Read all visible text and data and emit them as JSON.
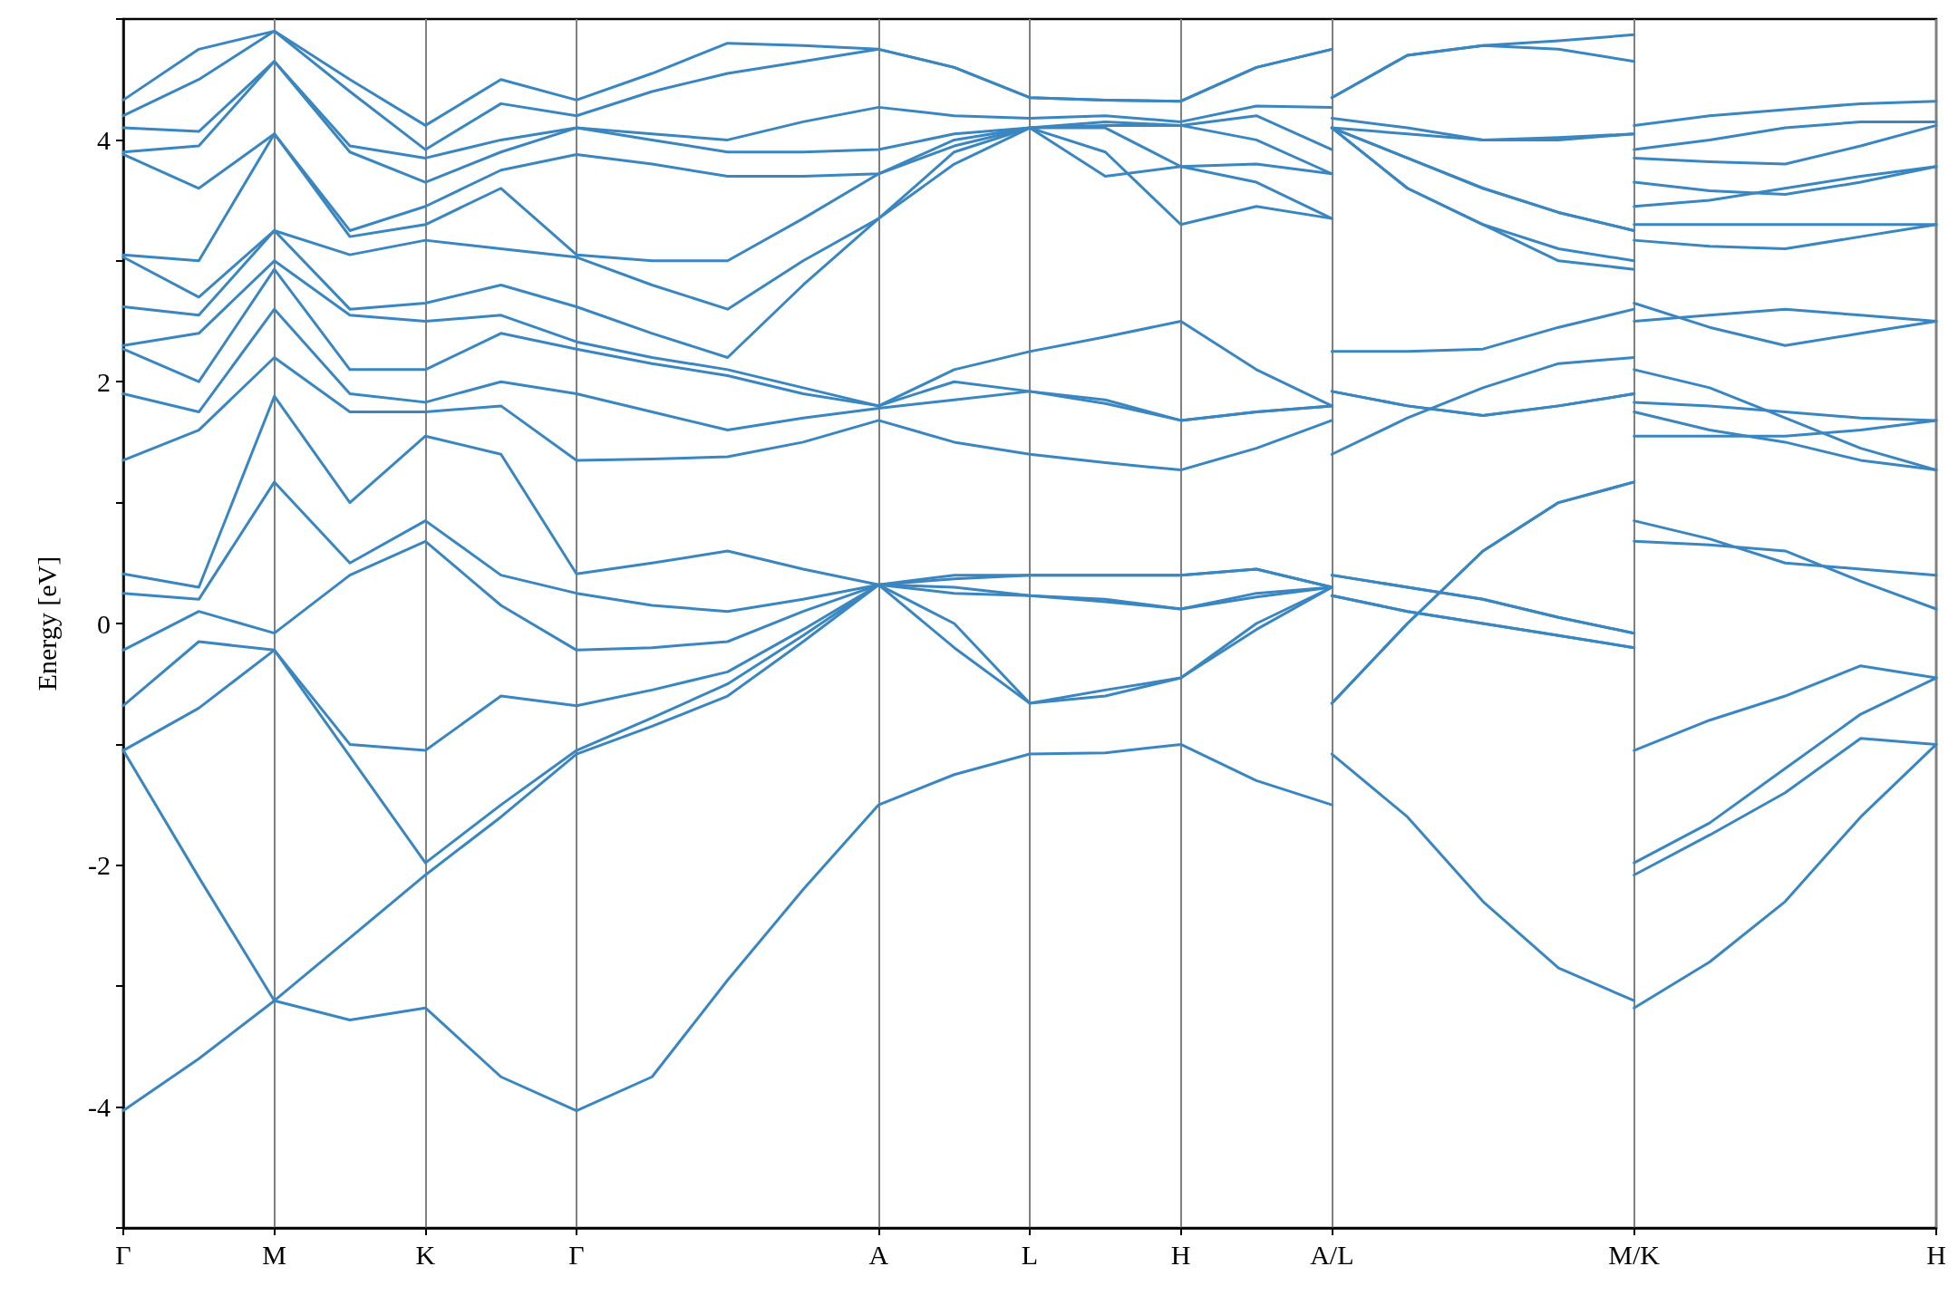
{
  "chart_data": {
    "type": "line",
    "ylabel": "Energy [eV]",
    "color": "#3a86c0",
    "grid": "x",
    "marker": "none",
    "line_style": "solid",
    "categories": [
      "Γ",
      null,
      "M",
      null,
      "K",
      null,
      "Γ",
      null,
      null,
      null,
      "A",
      null,
      "L",
      null,
      "H",
      null,
      "A/L",
      null,
      null,
      null,
      "M/K",
      null,
      null,
      null,
      "H"
    ],
    "ylim": [
      -5,
      5
    ],
    "yticks": [
      {
        "value": -5,
        "label": null
      },
      -4,
      {
        "value": -3,
        "label": null
      },
      -2,
      {
        "value": -1,
        "label": null
      },
      0,
      {
        "value": 1,
        "label": null
      },
      2,
      {
        "value": 3,
        "label": null
      },
      4,
      {
        "value": 5,
        "label": null
      }
    ],
    "series": [
      {
        "values": [
          -4.03,
          -3.6,
          -3.12,
          -3.28,
          -3.18,
          -3.75,
          -4.03,
          -3.75,
          -2.95,
          -2.2,
          -1.5,
          -1.25,
          -1.08,
          -1.07,
          -1.0,
          -1.3,
          -1.5,
          null,
          null,
          null,
          null,
          null,
          null,
          null,
          null
        ]
      },
      {
        "values": [
          null,
          null,
          null,
          null,
          null,
          null,
          null,
          null,
          null,
          null,
          null,
          null,
          null,
          null,
          null,
          null,
          -1.08,
          -1.6,
          -2.3,
          -2.85,
          -3.12,
          null,
          null,
          null,
          null
        ]
      },
      {
        "values": [
          null,
          null,
          null,
          null,
          null,
          null,
          null,
          null,
          null,
          null,
          null,
          null,
          null,
          null,
          null,
          null,
          null,
          null,
          null,
          null,
          -3.18,
          -2.8,
          -2.3,
          -1.6,
          -1.0
        ]
      },
      {
        "values": [
          -1.05,
          -2.1,
          -3.12,
          -2.6,
          -2.08,
          -1.6,
          -1.08,
          -0.85,
          -0.6,
          -0.15,
          0.32,
          -0.2,
          -0.66,
          -0.6,
          -0.45,
          -0.05,
          0.3,
          null,
          null,
          null,
          null,
          null,
          null,
          null,
          null
        ]
      },
      {
        "values": [
          null,
          null,
          null,
          null,
          null,
          null,
          null,
          null,
          null,
          null,
          null,
          null,
          null,
          null,
          null,
          null,
          -0.66,
          0.0,
          0.6,
          1.0,
          1.17,
          null,
          null,
          null,
          null
        ]
      },
      {
        "values": [
          null,
          null,
          null,
          null,
          null,
          null,
          null,
          null,
          null,
          null,
          null,
          null,
          null,
          null,
          null,
          null,
          null,
          null,
          null,
          null,
          -2.08,
          -1.75,
          -1.4,
          -0.95,
          -1.0
        ]
      },
      {
        "values": [
          -1.05,
          -0.7,
          -0.22,
          -1.1,
          -1.98,
          -1.5,
          -1.05,
          -0.78,
          -0.5,
          -0.1,
          0.32,
          0.0,
          -0.66,
          -0.55,
          -0.45,
          0.0,
          0.3,
          null,
          null,
          null,
          null,
          null,
          null,
          null,
          null
        ]
      },
      {
        "values": [
          null,
          null,
          null,
          null,
          null,
          null,
          null,
          null,
          null,
          null,
          null,
          null,
          null,
          null,
          null,
          null,
          -0.66,
          0.0,
          0.6,
          1.0,
          1.17,
          null,
          null,
          null,
          null
        ]
      },
      {
        "values": [
          null,
          null,
          null,
          null,
          null,
          null,
          null,
          null,
          null,
          null,
          null,
          null,
          null,
          null,
          null,
          null,
          null,
          null,
          null,
          null,
          -1.98,
          -1.65,
          -1.2,
          -0.75,
          -0.45
        ]
      },
      {
        "values": [
          -0.68,
          -0.15,
          -0.22,
          -1.0,
          -1.05,
          -0.6,
          -0.68,
          -0.55,
          -0.4,
          -0.05,
          0.32,
          0.25,
          0.23,
          0.2,
          0.12,
          0.22,
          0.3,
          null,
          null,
          null,
          null,
          null,
          null,
          null,
          null
        ]
      },
      {
        "values": [
          null,
          null,
          null,
          null,
          null,
          null,
          null,
          null,
          null,
          null,
          null,
          null,
          null,
          null,
          null,
          null,
          0.23,
          0.1,
          0.0,
          -0.1,
          -0.2,
          null,
          null,
          null,
          null
        ]
      },
      {
        "values": [
          null,
          null,
          null,
          null,
          null,
          null,
          null,
          null,
          null,
          null,
          null,
          null,
          null,
          null,
          null,
          null,
          null,
          null,
          null,
          null,
          -1.05,
          -0.8,
          -0.6,
          -0.35,
          -0.45
        ]
      },
      {
        "values": [
          -0.22,
          0.1,
          -0.08,
          0.4,
          0.68,
          0.15,
          -0.22,
          -0.2,
          -0.15,
          0.1,
          0.32,
          0.3,
          0.23,
          0.18,
          0.12,
          0.25,
          0.3,
          null,
          null,
          null,
          null,
          null,
          null,
          null,
          null
        ]
      },
      {
        "values": [
          null,
          null,
          null,
          null,
          null,
          null,
          null,
          null,
          null,
          null,
          null,
          null,
          null,
          null,
          null,
          null,
          0.23,
          0.1,
          0.0,
          -0.1,
          -0.2,
          null,
          null,
          null,
          null
        ]
      },
      {
        "values": [
          null,
          null,
          null,
          null,
          null,
          null,
          null,
          null,
          null,
          null,
          null,
          null,
          null,
          null,
          null,
          null,
          null,
          null,
          null,
          null,
          0.68,
          0.65,
          0.6,
          0.35,
          0.12
        ]
      },
      {
        "values": [
          0.25,
          0.2,
          1.17,
          0.5,
          0.85,
          0.4,
          0.25,
          0.15,
          0.1,
          0.2,
          0.32,
          0.37,
          0.4,
          0.4,
          0.4,
          0.45,
          0.3,
          null,
          null,
          null,
          null,
          null,
          null,
          null,
          null
        ]
      },
      {
        "values": [
          null,
          null,
          null,
          null,
          null,
          null,
          null,
          null,
          null,
          null,
          null,
          null,
          null,
          null,
          null,
          null,
          0.4,
          0.3,
          0.2,
          0.05,
          -0.08,
          null,
          null,
          null,
          null
        ]
      },
      {
        "values": [
          null,
          null,
          null,
          null,
          null,
          null,
          null,
          null,
          null,
          null,
          null,
          null,
          null,
          null,
          null,
          null,
          null,
          null,
          null,
          null,
          0.85,
          0.7,
          0.5,
          0.45,
          0.4
        ]
      },
      {
        "values": [
          0.41,
          0.3,
          1.88,
          1.0,
          1.55,
          1.4,
          0.41,
          0.5,
          0.6,
          0.45,
          0.32,
          0.4,
          0.4,
          0.4,
          0.4,
          0.45,
          0.3,
          null,
          null,
          null,
          null,
          null,
          null,
          null,
          null
        ]
      },
      {
        "values": [
          null,
          null,
          null,
          null,
          null,
          null,
          null,
          null,
          null,
          null,
          null,
          null,
          null,
          null,
          null,
          null,
          0.4,
          0.3,
          0.2,
          0.05,
          -0.08,
          null,
          null,
          null,
          null
        ]
      },
      {
        "values": [
          null,
          null,
          null,
          null,
          null,
          null,
          null,
          null,
          null,
          null,
          null,
          null,
          null,
          null,
          null,
          null,
          null,
          null,
          null,
          null,
          1.55,
          1.55,
          1.55,
          1.6,
          1.68
        ]
      },
      {
        "values": [
          1.35,
          1.6,
          2.2,
          1.75,
          1.75,
          1.8,
          1.35,
          1.36,
          1.38,
          1.5,
          1.68,
          1.5,
          1.4,
          1.33,
          1.27,
          1.45,
          1.68,
          null,
          null,
          null,
          null,
          null,
          null,
          null,
          null
        ]
      },
      {
        "values": [
          null,
          null,
          null,
          null,
          null,
          null,
          null,
          null,
          null,
          null,
          null,
          null,
          null,
          null,
          null,
          null,
          1.4,
          1.7,
          1.95,
          2.15,
          2.2,
          null,
          null,
          null,
          null
        ]
      },
      {
        "values": [
          null,
          null,
          null,
          null,
          null,
          null,
          null,
          null,
          null,
          null,
          null,
          null,
          null,
          null,
          null,
          null,
          null,
          null,
          null,
          null,
          1.75,
          1.6,
          1.5,
          1.35,
          1.27
        ]
      },
      {
        "values": [
          1.9,
          1.75,
          2.6,
          1.9,
          1.83,
          2.0,
          1.9,
          1.75,
          1.6,
          1.7,
          1.78,
          1.85,
          1.92,
          1.82,
          1.68,
          1.75,
          1.8,
          null,
          null,
          null,
          null,
          null,
          null,
          null,
          null
        ]
      },
      {
        "values": [
          null,
          null,
          null,
          null,
          null,
          null,
          null,
          null,
          null,
          null,
          null,
          null,
          null,
          null,
          null,
          null,
          1.92,
          1.8,
          1.72,
          1.8,
          1.9,
          null,
          null,
          null,
          null
        ]
      },
      {
        "values": [
          null,
          null,
          null,
          null,
          null,
          null,
          null,
          null,
          null,
          null,
          null,
          null,
          null,
          null,
          null,
          null,
          null,
          null,
          null,
          null,
          1.83,
          1.8,
          1.75,
          1.7,
          1.68
        ]
      },
      {
        "values": [
          2.27,
          2.0,
          2.93,
          2.1,
          2.1,
          2.4,
          2.27,
          2.15,
          2.05,
          1.9,
          1.8,
          2.0,
          1.92,
          1.85,
          1.68,
          1.75,
          1.8,
          null,
          null,
          null,
          null,
          null,
          null,
          null,
          null
        ]
      },
      {
        "values": [
          null,
          null,
          null,
          null,
          null,
          null,
          null,
          null,
          null,
          null,
          null,
          null,
          null,
          null,
          null,
          null,
          1.92,
          1.8,
          1.72,
          1.8,
          1.9,
          null,
          null,
          null,
          null
        ]
      },
      {
        "values": [
          null,
          null,
          null,
          null,
          null,
          null,
          null,
          null,
          null,
          null,
          null,
          null,
          null,
          null,
          null,
          null,
          null,
          null,
          null,
          null,
          2.1,
          1.95,
          1.7,
          1.45,
          1.27
        ]
      },
      {
        "values": [
          2.3,
          2.4,
          3.0,
          2.55,
          2.5,
          2.55,
          2.33,
          2.2,
          2.1,
          1.95,
          1.8,
          2.1,
          2.25,
          2.37,
          2.5,
          2.1,
          1.8,
          null,
          null,
          null,
          null,
          null,
          null,
          null,
          null
        ]
      },
      {
        "values": [
          null,
          null,
          null,
          null,
          null,
          null,
          null,
          null,
          null,
          null,
          null,
          null,
          null,
          null,
          null,
          null,
          2.25,
          2.25,
          2.27,
          2.45,
          2.6,
          null,
          null,
          null,
          null
        ]
      },
      {
        "values": [
          null,
          null,
          null,
          null,
          null,
          null,
          null,
          null,
          null,
          null,
          null,
          null,
          null,
          null,
          null,
          null,
          null,
          null,
          null,
          null,
          2.5,
          2.55,
          2.6,
          2.55,
          2.5
        ]
      },
      {
        "values": [
          2.62,
          2.55,
          3.25,
          2.6,
          2.65,
          2.8,
          2.62,
          2.4,
          2.2,
          2.8,
          3.35,
          3.8,
          4.1,
          3.9,
          3.3,
          3.45,
          3.35,
          null,
          null,
          null,
          null,
          null,
          null,
          null,
          null
        ]
      },
      {
        "values": [
          null,
          null,
          null,
          null,
          null,
          null,
          null,
          null,
          null,
          null,
          null,
          null,
          null,
          null,
          null,
          null,
          4.1,
          3.85,
          3.6,
          3.4,
          3.25,
          null,
          null,
          null,
          null
        ]
      },
      {
        "values": [
          null,
          null,
          null,
          null,
          null,
          null,
          null,
          null,
          null,
          null,
          null,
          null,
          null,
          null,
          null,
          null,
          null,
          null,
          null,
          null,
          2.65,
          2.45,
          2.3,
          2.4,
          2.5
        ]
      },
      {
        "values": [
          3.03,
          2.7,
          3.25,
          3.05,
          3.17,
          3.1,
          3.03,
          2.8,
          2.6,
          3.0,
          3.35,
          3.9,
          4.1,
          3.7,
          3.78,
          3.65,
          3.35,
          null,
          null,
          null,
          null,
          null,
          null,
          null,
          null
        ]
      },
      {
        "values": [
          null,
          null,
          null,
          null,
          null,
          null,
          null,
          null,
          null,
          null,
          null,
          null,
          null,
          null,
          null,
          null,
          4.1,
          3.85,
          3.6,
          3.4,
          3.25,
          null,
          null,
          null,
          null
        ]
      },
      {
        "values": [
          null,
          null,
          null,
          null,
          null,
          null,
          null,
          null,
          null,
          null,
          null,
          null,
          null,
          null,
          null,
          null,
          null,
          null,
          null,
          null,
          3.17,
          3.12,
          3.1,
          3.2,
          3.3
        ]
      },
      {
        "values": [
          3.05,
          3.0,
          4.05,
          3.2,
          3.3,
          3.6,
          3.05,
          3.0,
          3.0,
          3.35,
          3.72,
          3.95,
          4.1,
          4.1,
          3.78,
          3.8,
          3.72,
          null,
          null,
          null,
          null,
          null,
          null,
          null,
          null
        ]
      },
      {
        "values": [
          null,
          null,
          null,
          null,
          null,
          null,
          null,
          null,
          null,
          null,
          null,
          null,
          null,
          null,
          null,
          null,
          4.1,
          3.6,
          3.3,
          3.1,
          3.0,
          null,
          null,
          null,
          null
        ]
      },
      {
        "values": [
          null,
          null,
          null,
          null,
          null,
          null,
          null,
          null,
          null,
          null,
          null,
          null,
          null,
          null,
          null,
          null,
          null,
          null,
          null,
          null,
          3.3,
          3.3,
          3.3,
          3.3,
          3.3
        ]
      },
      {
        "values": [
          3.88,
          3.6,
          4.05,
          3.25,
          3.45,
          3.75,
          3.88,
          3.8,
          3.7,
          3.7,
          3.72,
          4.0,
          4.1,
          4.12,
          4.12,
          4.0,
          3.72,
          null,
          null,
          null,
          null,
          null,
          null,
          null,
          null
        ]
      },
      {
        "values": [
          null,
          null,
          null,
          null,
          null,
          null,
          null,
          null,
          null,
          null,
          null,
          null,
          null,
          null,
          null,
          null,
          4.1,
          3.6,
          3.3,
          3.0,
          2.93,
          null,
          null,
          null,
          null
        ]
      },
      {
        "values": [
          null,
          null,
          null,
          null,
          null,
          null,
          null,
          null,
          null,
          null,
          null,
          null,
          null,
          null,
          null,
          null,
          null,
          null,
          null,
          null,
          3.45,
          3.5,
          3.6,
          3.7,
          3.78
        ]
      },
      {
        "values": [
          3.9,
          3.95,
          4.65,
          3.9,
          3.65,
          3.9,
          4.1,
          4.0,
          3.9,
          3.9,
          3.92,
          4.05,
          4.1,
          4.15,
          4.12,
          4.2,
          3.92,
          null,
          null,
          null,
          null,
          null,
          null,
          null,
          null
        ]
      },
      {
        "values": [
          null,
          null,
          null,
          null,
          null,
          null,
          null,
          null,
          null,
          null,
          null,
          null,
          null,
          null,
          null,
          null,
          4.1,
          4.05,
          4.0,
          4.0,
          4.05,
          null,
          null,
          null,
          null
        ]
      },
      {
        "values": [
          null,
          null,
          null,
          null,
          null,
          null,
          null,
          null,
          null,
          null,
          null,
          null,
          null,
          null,
          null,
          null,
          null,
          null,
          null,
          null,
          3.65,
          3.58,
          3.55,
          3.65,
          3.78
        ]
      },
      {
        "values": [
          4.1,
          4.07,
          4.65,
          3.95,
          3.85,
          4.0,
          4.1,
          4.05,
          4.0,
          4.15,
          4.27,
          4.2,
          4.18,
          4.2,
          4.15,
          4.28,
          4.27,
          null,
          null,
          null,
          null,
          null,
          null,
          null,
          null
        ]
      },
      {
        "values": [
          null,
          null,
          null,
          null,
          null,
          null,
          null,
          null,
          null,
          null,
          null,
          null,
          null,
          null,
          null,
          null,
          4.18,
          4.1,
          4.0,
          4.02,
          4.05,
          null,
          null,
          null,
          null
        ]
      },
      {
        "values": [
          null,
          null,
          null,
          null,
          null,
          null,
          null,
          null,
          null,
          null,
          null,
          null,
          null,
          null,
          null,
          null,
          null,
          null,
          null,
          null,
          3.85,
          3.82,
          3.8,
          3.95,
          4.12
        ]
      },
      {
        "values": [
          4.2,
          4.5,
          4.9,
          4.4,
          3.92,
          4.3,
          4.2,
          4.4,
          4.55,
          4.65,
          4.75,
          4.6,
          4.35,
          4.33,
          4.32,
          4.6,
          4.75,
          null,
          null,
          null,
          null,
          null,
          null,
          null,
          null
        ]
      },
      {
        "values": [
          null,
          null,
          null,
          null,
          null,
          null,
          null,
          null,
          null,
          null,
          null,
          null,
          null,
          null,
          null,
          null,
          4.35,
          4.7,
          4.78,
          4.82,
          4.87,
          null,
          null,
          null,
          null
        ]
      },
      {
        "values": [
          null,
          null,
          null,
          null,
          null,
          null,
          null,
          null,
          null,
          null,
          null,
          null,
          null,
          null,
          null,
          null,
          null,
          null,
          null,
          null,
          3.92,
          4.0,
          4.1,
          4.15,
          4.15
        ]
      },
      {
        "values": [
          4.33,
          4.75,
          4.9,
          4.5,
          4.12,
          4.5,
          4.33,
          4.55,
          4.8,
          4.78,
          4.75,
          4.6,
          4.35,
          4.33,
          4.32,
          4.6,
          4.75,
          null,
          null,
          null,
          null,
          null,
          null,
          null,
          null
        ]
      },
      {
        "values": [
          null,
          null,
          null,
          null,
          null,
          null,
          null,
          null,
          null,
          null,
          null,
          null,
          null,
          null,
          null,
          null,
          4.35,
          4.7,
          4.78,
          4.75,
          4.65,
          null,
          null,
          null,
          null
        ]
      },
      {
        "values": [
          null,
          null,
          null,
          null,
          null,
          null,
          null,
          null,
          null,
          null,
          null,
          null,
          null,
          null,
          null,
          null,
          null,
          null,
          null,
          null,
          4.12,
          4.2,
          4.25,
          4.3,
          4.32
        ]
      }
    ]
  }
}
